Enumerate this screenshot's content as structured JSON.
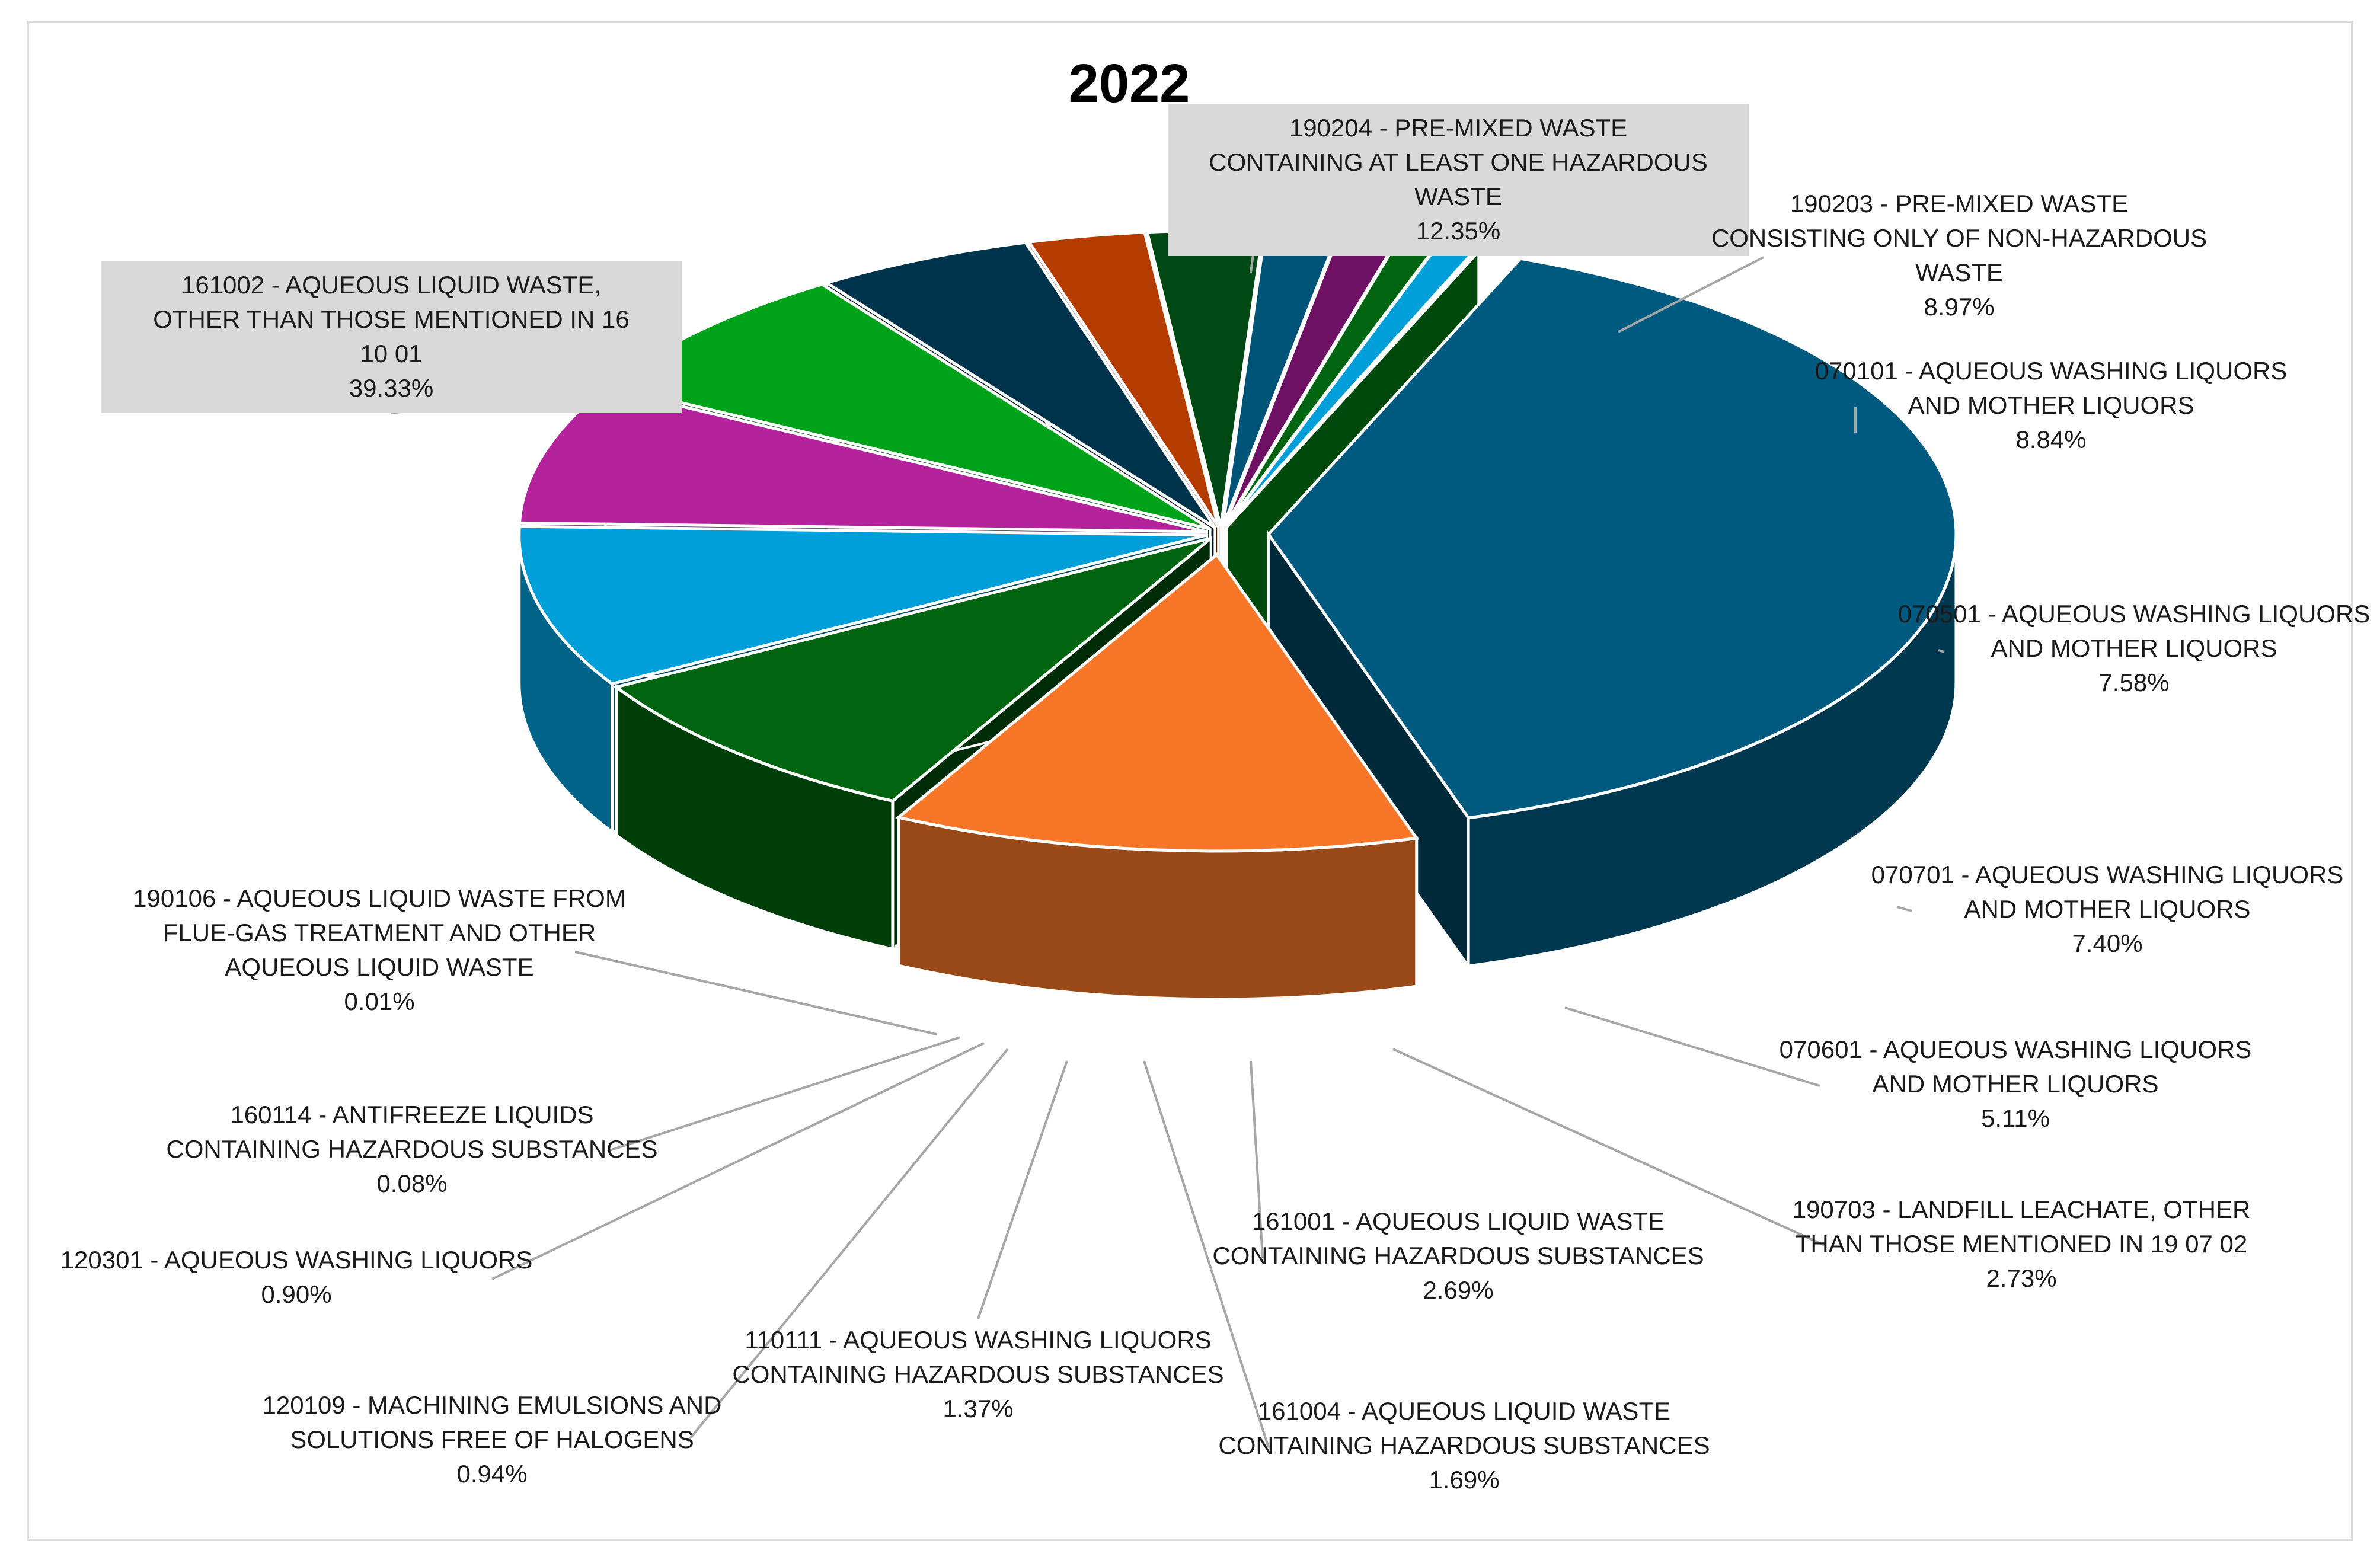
{
  "chart_data": {
    "type": "pie",
    "style": "3d-exploded",
    "title": "2022",
    "slices": [
      {
        "label": "161002 - AQUEOUS LIQUID WASTE, OTHER THAN THOSE MENTIONED IN 16 10 01",
        "pct_label": "39.33%",
        "value": 39.33,
        "color": "#005a7f"
      },
      {
        "label": "190204 - PRE-MIXED WASTE CONTAINING AT LEAST ONE HAZARDOUS WASTE",
        "pct_label": "12.35%",
        "value": 12.35,
        "color": "#f87628"
      },
      {
        "label": "190203 - PRE-MIXED WASTE CONSISTING ONLY OF NON-HAZARDOUS WASTE",
        "pct_label": "8.97%",
        "value": 8.97,
        "color": "#006410"
      },
      {
        "label": "070101 - AQUEOUS WASHING LIQUORS AND MOTHER LIQUORS",
        "pct_label": "8.84%",
        "value": 8.84,
        "color": "#009fd9"
      },
      {
        "label": "070501 - AQUEOUS WASHING LIQUORS AND MOTHER LIQUORS",
        "pct_label": "7.58%",
        "value": 7.58,
        "color": "#b4239b"
      },
      {
        "label": "070701 - AQUEOUS WASHING LIQUORS AND MOTHER LIQUORS",
        "pct_label": "7.40%",
        "value": 7.4,
        "color": "#00a31a"
      },
      {
        "label": "070601 - AQUEOUS WASHING LIQUORS AND MOTHER LIQUORS",
        "pct_label": "5.11%",
        "value": 5.11,
        "color": "#00334c"
      },
      {
        "label": "190703 - LANDFILL LEACHATE, OTHER THAN THOSE MENTIONED IN 19 07 02",
        "pct_label": "2.73%",
        "value": 2.73,
        "color": "#b43c00"
      },
      {
        "label": "161001 - AQUEOUS LIQUID WASTE CONTAINING HAZARDOUS SUBSTANCES",
        "pct_label": "2.69%",
        "value": 2.69,
        "color": "#004814"
      },
      {
        "label": "161004 - AQUEOUS LIQUID WASTE CONTAINING HAZARDOUS SUBSTANCES",
        "pct_label": "1.69%",
        "value": 1.69,
        "color": "#005478"
      },
      {
        "label": "110111 - AQUEOUS WASHING LIQUORS CONTAINING HAZARDOUS SUBSTANCES",
        "pct_label": "1.37%",
        "value": 1.37,
        "color": "#6e1064"
      },
      {
        "label": "120109 - MACHINING EMULSIONS AND SOLUTIONS FREE OF HALOGENS",
        "pct_label": "0.94%",
        "value": 0.94,
        "color": "#006410"
      },
      {
        "label": "120301 - AQUEOUS WASHING LIQUORS",
        "pct_label": "0.90%",
        "value": 0.9,
        "color": "#009fd9"
      },
      {
        "label": "160114 - ANTIFREEZE LIQUIDS CONTAINING HAZARDOUS SUBSTANCES",
        "pct_label": "0.08%",
        "value": 0.08,
        "color": "#b4239b"
      },
      {
        "label": "190106 - AQUEOUS LIQUID WASTE FROM FLUE-GAS TREATMENT AND OTHER AQUEOUS LIQUID WASTE",
        "pct_label": "0.01%",
        "value": 0.01,
        "color": "#00a31a"
      }
    ]
  }
}
